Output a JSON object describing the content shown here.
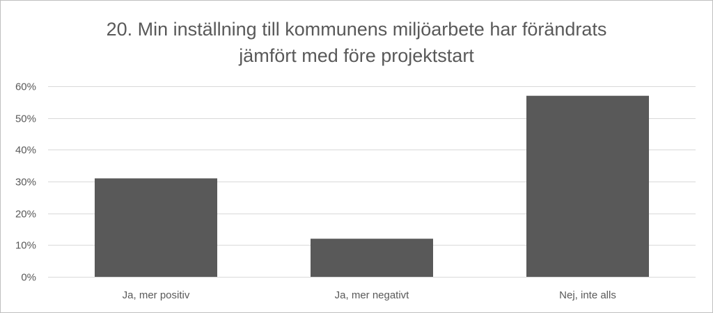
{
  "chart_data": {
    "type": "bar",
    "title_lines": [
      "20. Min inställning till kommunens  miljöarbete har förändrats",
      "jämfört med före projektstart"
    ],
    "categories": [
      "Ja, mer positiv",
      "Ja, mer negativt",
      "Nej, inte alls"
    ],
    "values": [
      31,
      12,
      57
    ],
    "unit": "%",
    "ylim": [
      0,
      60
    ],
    "yticks": [
      0,
      10,
      20,
      30,
      40,
      50,
      60
    ],
    "grid": true,
    "legend": "none",
    "bar_color": "#595959",
    "grid_color": "#d9d9d9",
    "text_color": "#595959"
  }
}
